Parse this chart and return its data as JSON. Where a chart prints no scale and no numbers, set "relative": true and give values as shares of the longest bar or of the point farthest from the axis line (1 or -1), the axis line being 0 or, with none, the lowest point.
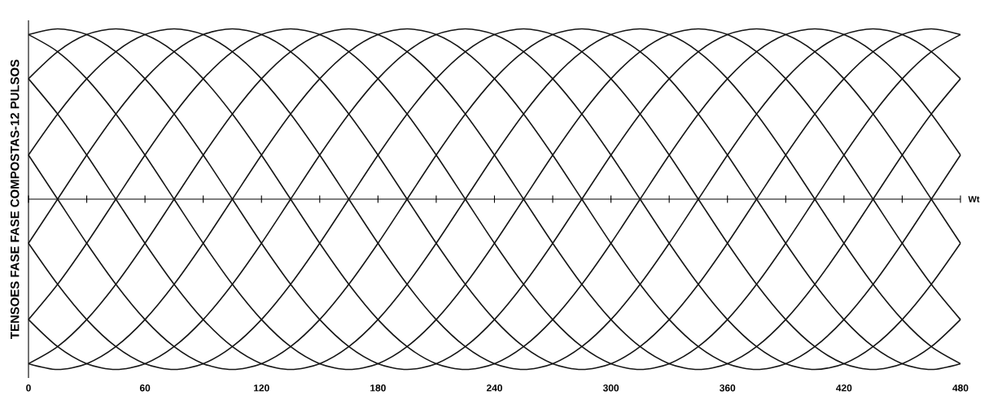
{
  "chart_data": {
    "type": "line",
    "relative": true,
    "marker": "none",
    "line_style": "solid",
    "xlabel": "Wt",
    "ylabel": "TENSOES FASE FASE COMPOSTAS-12 PULSOS",
    "xlim": [
      0,
      480
    ],
    "xticks": [
      0,
      {
        "value": 30,
        "label": null
      },
      60,
      {
        "value": 90,
        "label": null
      },
      120,
      {
        "value": 150,
        "label": null
      },
      180,
      {
        "value": 210,
        "label": null
      },
      240,
      {
        "value": 270,
        "label": null
      },
      300,
      {
        "value": 330,
        "label": null
      },
      360,
      {
        "value": 390,
        "label": null
      },
      420,
      {
        "value": 450,
        "label": null
      },
      480
    ],
    "x": [
      0,
      15,
      30,
      45,
      60,
      75,
      90,
      105,
      120,
      135,
      150,
      165,
      180,
      195,
      210,
      225,
      240,
      255,
      270,
      285,
      300,
      315,
      330,
      345,
      360,
      375,
      390,
      405,
      420,
      435,
      450,
      465,
      480
    ],
    "series": [
      {
        "color": "#151515",
        "values": [
          0.259,
          0,
          -0.259,
          -0.5,
          -0.707,
          -0.866,
          -0.966,
          -1,
          -0.966,
          -0.866,
          -0.707,
          -0.5,
          -0.259,
          0,
          0.259,
          0.5,
          0.707,
          0.866,
          0.966,
          1,
          0.966,
          0.866,
          0.707,
          0.5,
          0.259,
          0,
          -0.259,
          -0.5,
          -0.707,
          -0.866,
          -0.966,
          -1,
          -0.966
        ]
      },
      {
        "color": "#151515",
        "values": [
          -0.259,
          0,
          0.259,
          0.5,
          0.707,
          0.866,
          0.966,
          1,
          0.966,
          0.866,
          0.707,
          0.5,
          0.259,
          0,
          -0.259,
          -0.5,
          -0.707,
          -0.866,
          -0.966,
          -1,
          -0.966,
          -0.866,
          -0.707,
          -0.5,
          -0.259,
          0,
          0.259,
          0.5,
          0.707,
          0.866,
          0.966,
          1,
          0.966
        ]
      },
      {
        "color": "#151515",
        "values": [
          0.707,
          0.5,
          0.259,
          0,
          -0.259,
          -0.5,
          -0.707,
          -0.866,
          -0.966,
          -1,
          -0.966,
          -0.866,
          -0.707,
          -0.5,
          -0.259,
          0,
          0.259,
          0.5,
          0.707,
          0.866,
          0.966,
          1,
          0.966,
          0.866,
          0.707,
          0.5,
          0.259,
          0,
          -0.259,
          -0.5,
          -0.707,
          -0.866,
          -0.966
        ]
      },
      {
        "color": "#151515",
        "values": [
          -0.707,
          -0.5,
          -0.259,
          0,
          0.259,
          0.5,
          0.707,
          0.866,
          0.966,
          1,
          0.966,
          0.866,
          0.707,
          0.5,
          0.259,
          0,
          -0.259,
          -0.5,
          -0.707,
          -0.866,
          -0.966,
          -1,
          -0.966,
          -0.866,
          -0.707,
          -0.5,
          -0.259,
          0,
          0.259,
          0.5,
          0.707,
          0.866,
          0.966
        ]
      },
      {
        "color": "#151515",
        "values": [
          0.966,
          0.866,
          0.707,
          0.5,
          0.259,
          0,
          -0.259,
          -0.5,
          -0.707,
          -0.866,
          -0.966,
          -1,
          -0.966,
          -0.866,
          -0.707,
          -0.5,
          -0.259,
          0,
          0.259,
          0.5,
          0.707,
          0.866,
          0.966,
          1,
          0.966,
          0.866,
          0.707,
          0.5,
          0.259,
          0,
          -0.259,
          -0.5,
          -0.707
        ]
      },
      {
        "color": "#151515",
        "values": [
          -0.966,
          -0.866,
          -0.707,
          -0.5,
          -0.259,
          0,
          0.259,
          0.5,
          0.707,
          0.866,
          0.966,
          1,
          0.966,
          0.866,
          0.707,
          0.5,
          0.259,
          0,
          -0.259,
          -0.5,
          -0.707,
          -0.866,
          -0.966,
          -1,
          -0.966,
          -0.866,
          -0.707,
          -0.5,
          -0.259,
          0,
          0.259,
          0.5,
          0.707
        ]
      },
      {
        "color": "#151515",
        "values": [
          0.966,
          1,
          0.966,
          0.866,
          0.707,
          0.5,
          0.259,
          0,
          -0.259,
          -0.5,
          -0.707,
          -0.866,
          -0.966,
          -1,
          -0.966,
          -0.866,
          -0.707,
          -0.5,
          -0.259,
          0,
          0.259,
          0.5,
          0.707,
          0.866,
          0.966,
          1,
          0.966,
          0.866,
          0.707,
          0.5,
          0.259,
          0,
          -0.259
        ]
      },
      {
        "color": "#151515",
        "values": [
          -0.966,
          -1,
          -0.966,
          -0.866,
          -0.707,
          -0.5,
          -0.259,
          0,
          0.259,
          0.5,
          0.707,
          0.866,
          0.966,
          1,
          0.966,
          0.866,
          0.707,
          0.5,
          0.259,
          0,
          -0.259,
          -0.5,
          -0.707,
          -0.866,
          -0.966,
          -1,
          -0.966,
          -0.866,
          -0.707,
          -0.5,
          -0.259,
          0,
          0.259
        ]
      },
      {
        "color": "#151515",
        "values": [
          0.707,
          0.866,
          0.966,
          1,
          0.966,
          0.866,
          0.707,
          0.5,
          0.259,
          0,
          -0.259,
          -0.5,
          -0.707,
          -0.866,
          -0.966,
          -1,
          -0.966,
          -0.866,
          -0.707,
          -0.5,
          -0.259,
          0,
          0.259,
          0.5,
          0.707,
          0.866,
          0.966,
          1,
          0.966,
          0.866,
          0.707,
          0.5,
          0.259
        ]
      },
      {
        "color": "#151515",
        "values": [
          -0.707,
          -0.866,
          -0.966,
          -1,
          -0.966,
          -0.866,
          -0.707,
          -0.5,
          -0.259,
          0,
          0.259,
          0.5,
          0.707,
          0.866,
          0.966,
          1,
          0.966,
          0.866,
          0.707,
          0.5,
          0.259,
          0,
          -0.259,
          -0.5,
          -0.707,
          -0.866,
          -0.966,
          -1,
          -0.966,
          -0.866,
          -0.707,
          -0.5,
          -0.259
        ]
      },
      {
        "color": "#151515",
        "values": [
          0.259,
          0.5,
          0.707,
          0.866,
          0.966,
          1,
          0.966,
          0.866,
          0.707,
          0.5,
          0.259,
          0,
          -0.259,
          -0.5,
          -0.707,
          -0.866,
          -0.966,
          -1,
          -0.966,
          -0.866,
          -0.707,
          -0.5,
          -0.259,
          0,
          0.259,
          0.5,
          0.707,
          0.866,
          0.966,
          1,
          0.966,
          0.866,
          0.707
        ]
      },
      {
        "color": "#151515",
        "values": [
          -0.259,
          -0.5,
          -0.707,
          -0.866,
          -0.966,
          -1,
          -0.966,
          -0.866,
          -0.707,
          -0.5,
          -0.259,
          0,
          0.259,
          0.5,
          0.707,
          0.866,
          0.966,
          1,
          0.966,
          0.866,
          0.707,
          0.5,
          0.259,
          0,
          -0.259,
          -0.5,
          -0.707,
          -0.866,
          -0.966,
          -1,
          -0.966,
          -0.866,
          -0.707
        ]
      }
    ]
  }
}
